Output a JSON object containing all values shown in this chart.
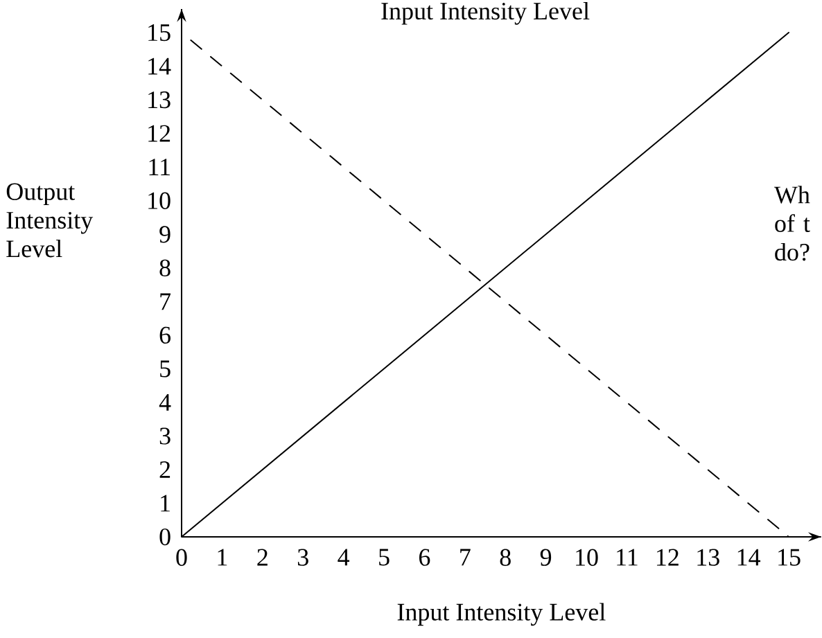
{
  "chart_data": {
    "type": "line",
    "title": "Input Intensity Level",
    "xlabel": "Input Intensity Level",
    "ylabel": "Output Intensity Level",
    "annotations": [
      "Wh of t do?"
    ],
    "x": [
      0,
      15
    ],
    "series": [
      {
        "color": "#000000",
        "values": [
          0,
          15
        ],
        "line_style": "solid"
      },
      {
        "color": "#000000",
        "values": [
          15,
          0
        ],
        "line_style": "dashed"
      }
    ],
    "xlim": [
      0,
      15.8
    ],
    "ylim": [
      0,
      15.7
    ],
    "xticks": [
      0,
      1,
      2,
      3,
      4,
      5,
      6,
      7,
      8,
      9,
      10,
      11,
      12,
      13,
      14,
      15
    ],
    "yticks": [
      0,
      1,
      2,
      3,
      4,
      5,
      6,
      7,
      8,
      9,
      10,
      11,
      12,
      13,
      14,
      15
    ],
    "grid": false,
    "marker": "none"
  }
}
